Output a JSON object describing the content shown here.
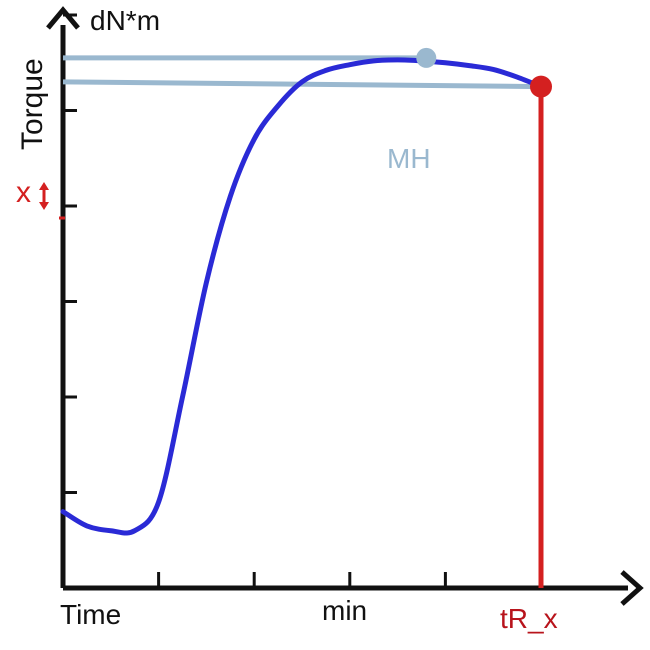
{
  "chart_data": {
    "type": "line",
    "ylabel_rotated": "Torque",
    "yunit": "dN*m",
    "xlabel_left": "Time",
    "xunit": "min",
    "grid": false,
    "legend": "none",
    "series": [
      {
        "color": "#2a2ad6",
        "x": [
          0,
          0.25,
          0.5,
          0.75,
          1.0,
          1.25,
          1.5,
          1.75,
          2.0,
          2.25,
          2.5,
          2.75,
          3.0,
          3.25,
          3.5,
          3.75,
          4.0,
          4.25,
          4.5,
          4.75,
          5.0
        ],
        "y": [
          0.8,
          0.65,
          0.6,
          0.6,
          0.9,
          2.0,
          3.2,
          4.1,
          4.7,
          5.05,
          5.3,
          5.42,
          5.48,
          5.52,
          5.53,
          5.52,
          5.5,
          5.47,
          5.43,
          5.35,
          5.25
        ]
      }
    ],
    "annotations": {
      "mh": {
        "label": "MH",
        "x": 3.8,
        "y": 5.53,
        "color": "#9ab8cf"
      },
      "tr": {
        "label": "tR_x",
        "x": 5.0,
        "y": 5.25,
        "color": "#d42020"
      },
      "x_marker": {
        "label": "x",
        "color": "#d42020"
      }
    },
    "xlim": [
      0,
      5.6
    ],
    "ylim": [
      0,
      6.5
    ],
    "xticks": [
      1,
      2,
      3,
      4,
      5
    ],
    "yticks": [
      1,
      2,
      3,
      4,
      5,
      6
    ]
  }
}
